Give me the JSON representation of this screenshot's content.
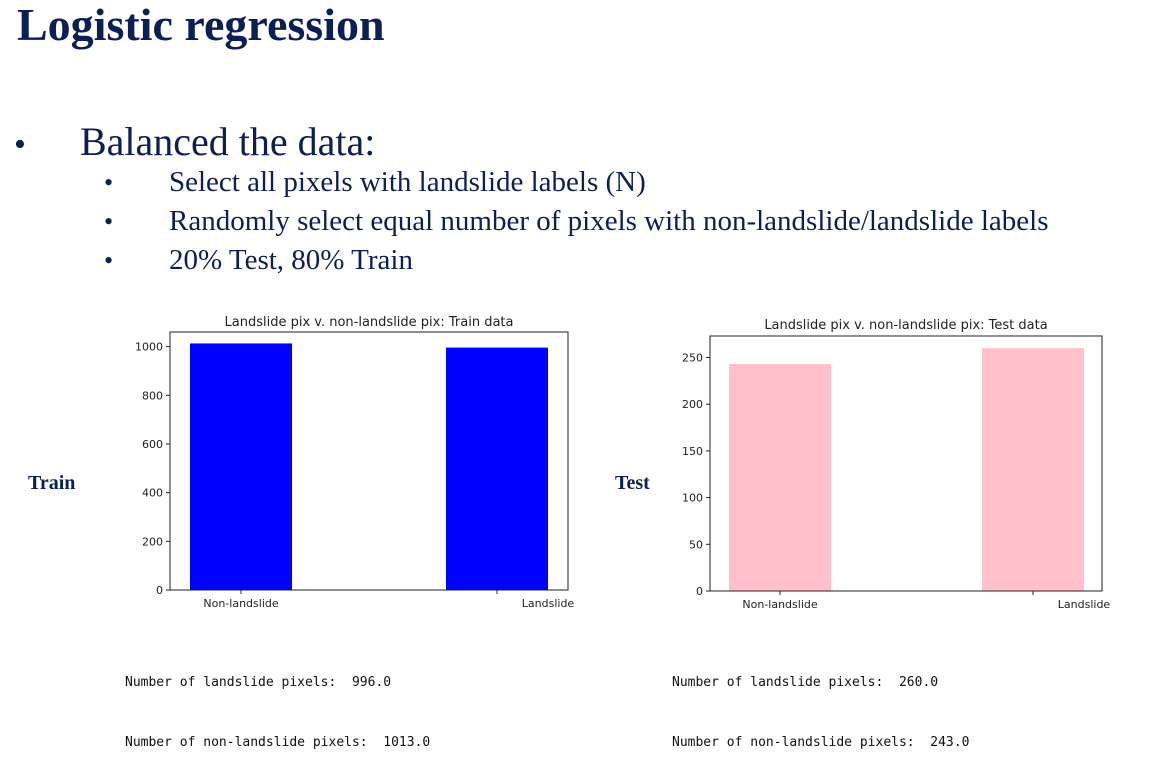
{
  "slide": {
    "title": "Logistic regression",
    "bullet": "Balanced the data:",
    "sub_bullets": [
      "Select all pixels with landslide labels (N)",
      "Randomly select equal number of pixels with non-landslide/landslide labels",
      "20% Test, 80% Train"
    ],
    "bullet_glyph": "•"
  },
  "labels": {
    "train": "Train",
    "test": "Test"
  },
  "readouts": {
    "train": [
      "Number of landslide pixels:  996.0",
      "Number of non-landslide pixels:  1013.0"
    ],
    "test": [
      "Number of landslide pixels:  260.0",
      "Number of non-landslide pixels:  243.0"
    ]
  },
  "chart_data": [
    {
      "type": "bar",
      "title": "Landslide pix v. non-landslide pix: Train data",
      "categories": [
        "Non-landslide",
        "Landslide"
      ],
      "values": [
        1013,
        996
      ],
      "ylim": [
        0,
        1060
      ],
      "yticks": [
        0,
        200,
        400,
        600,
        800,
        1000
      ],
      "color": "#0000ff",
      "xlabel": "",
      "ylabel": "",
      "grid": false
    },
    {
      "type": "bar",
      "title": "Landslide pix v. non-landslide pix: Test data",
      "categories": [
        "Non-landslide",
        "Landslide"
      ],
      "values": [
        243,
        260
      ],
      "ylim": [
        0,
        273
      ],
      "yticks": [
        0,
        50,
        100,
        150,
        200,
        250
      ],
      "color": "#ffc0cb",
      "xlabel": "",
      "ylabel": "",
      "grid": false
    }
  ]
}
